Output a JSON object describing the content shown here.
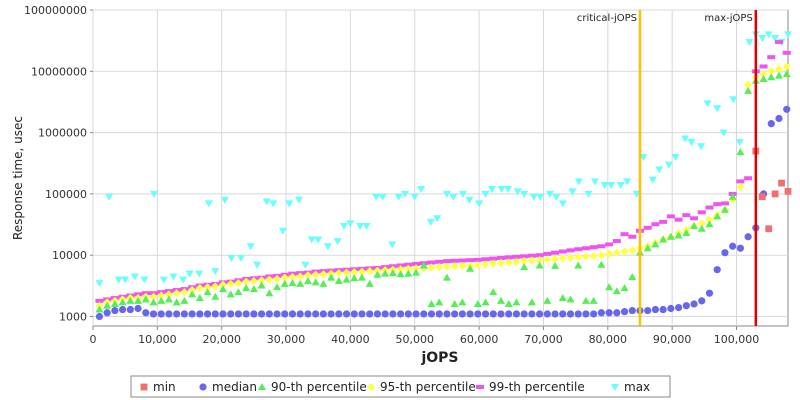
{
  "chart_data": {
    "type": "scatter",
    "xlabel": "jOPS",
    "ylabel": "Response time, usec",
    "xlim": [
      0,
      108000
    ],
    "ylim": [
      700,
      100000000
    ],
    "y_scale": "log",
    "x_ticks": [
      0,
      10000,
      20000,
      30000,
      40000,
      50000,
      60000,
      70000,
      80000,
      90000,
      100000
    ],
    "x_tick_labels": [
      "0",
      "10,000",
      "20,000",
      "30,000",
      "40,000",
      "50,000",
      "60,000",
      "70,000",
      "80,000",
      "90,000",
      "100,000"
    ],
    "y_ticks": [
      1000,
      10000,
      100000,
      1000000,
      10000000,
      100000000
    ],
    "y_tick_labels": [
      "1000",
      "10000",
      "100000",
      "1000000",
      "10000000",
      "100000000"
    ],
    "grid": true,
    "legend_position": "bottom",
    "vlines": [
      {
        "label": "critical-jOPS",
        "x": 85000,
        "color": "#ffc000"
      },
      {
        "label": "max-jOPS",
        "x": 103000,
        "color": "#dd0000"
      }
    ],
    "series": [
      {
        "name": "min",
        "marker": "square",
        "color": "#f07070",
        "x": [
          103000,
          104000,
          105000,
          106000,
          107000,
          108000
        ],
        "y": [
          500000,
          90000,
          27000,
          100000,
          150000,
          110000
        ]
      },
      {
        "name": "median",
        "marker": "circle",
        "color": "#6666ee",
        "x_start": 1000,
        "x_step": 1200,
        "y": [
          1000,
          1150,
          1250,
          1300,
          1300,
          1350,
          1150,
          1100,
          1100,
          1100,
          1100,
          1100,
          1100,
          1100,
          1100,
          1100,
          1100,
          1100,
          1100,
          1100,
          1100,
          1100,
          1100,
          1100,
          1100,
          1100,
          1100,
          1100,
          1100,
          1100,
          1100,
          1100,
          1100,
          1100,
          1100,
          1100,
          1100,
          1100,
          1100,
          1100,
          1100,
          1100,
          1100,
          1100,
          1100,
          1100,
          1100,
          1100,
          1100,
          1100,
          1100,
          1100,
          1100,
          1100,
          1100,
          1100,
          1100,
          1100,
          1100,
          1100,
          1100,
          1100,
          1100,
          1100,
          1100,
          1150,
          1150,
          1150,
          1200,
          1250,
          1250,
          1250,
          1300,
          1300,
          1350,
          1400,
          1500,
          1600,
          1800,
          2400,
          5800,
          11000,
          14000,
          13000,
          20000,
          28000,
          100000,
          1400000,
          1700000,
          2400000,
          1700000
        ]
      },
      {
        "name": "90-th percentile",
        "marker": "triangle",
        "color": "#55ee55",
        "x_start": 1000,
        "x_step": 1200,
        "y": [
          1300,
          1500,
          1600,
          1700,
          1800,
          1800,
          1900,
          1700,
          1800,
          1900,
          1700,
          1800,
          2300,
          2000,
          2500,
          2100,
          2800,
          2300,
          2500,
          2900,
          2800,
          3200,
          2400,
          3000,
          3400,
          3500,
          3400,
          3800,
          3600,
          3400,
          4300,
          3800,
          4000,
          4200,
          4300,
          3400,
          4800,
          5000,
          5100,
          4900,
          5000,
          5200,
          6800,
          1600,
          1700,
          4300,
          1600,
          1700,
          6000,
          1600,
          1700,
          2500,
          1800,
          1600,
          1700,
          6400,
          1700,
          6800,
          1800,
          6700,
          2000,
          1900,
          6800,
          1800,
          1800,
          7000,
          3000,
          2600,
          2900,
          4400,
          11000,
          13000,
          15000,
          18000,
          20000,
          21000,
          23000,
          30000,
          27000,
          32000,
          43000,
          55000,
          90000,
          480000,
          4800000,
          7000000,
          7500000,
          8000000,
          8500000,
          9000000,
          8000000
        ]
      },
      {
        "name": "95-th percentile",
        "marker": "diamond",
        "color": "#ffff44",
        "x_start": 1000,
        "x_step": 1200,
        "y": [
          1500,
          1700,
          1800,
          1900,
          2000,
          2000,
          2100,
          2100,
          2200,
          2300,
          2400,
          2500,
          2700,
          2900,
          3000,
          3100,
          3300,
          3400,
          3500,
          3700,
          3800,
          3900,
          4000,
          4100,
          4300,
          4400,
          4500,
          4700,
          4800,
          4900,
          5000,
          5100,
          5200,
          5300,
          5400,
          5500,
          5600,
          5700,
          5800,
          5900,
          6000,
          6100,
          6200,
          6300,
          6400,
          6500,
          6600,
          6700,
          6800,
          6900,
          7100,
          7300,
          7500,
          7600,
          7800,
          8000,
          8200,
          8300,
          8500,
          8700,
          8900,
          9100,
          9300,
          9500,
          9700,
          10000,
          10500,
          11000,
          11500,
          12000,
          13000,
          14000,
          16000,
          18000,
          20000,
          23000,
          26000,
          30000,
          33000,
          38000,
          45000,
          55000,
          80000,
          130000,
          6000000,
          8000000,
          9000000,
          10000000,
          11000000,
          12000000,
          10000000
        ]
      },
      {
        "name": "99-th percentile",
        "marker": "minus",
        "color": "#ee55ee",
        "x_start": 1000,
        "x_step": 1200,
        "y": [
          1800,
          1900,
          2000,
          2100,
          2200,
          2300,
          2400,
          2400,
          2500,
          2600,
          2700,
          2800,
          3000,
          3200,
          3300,
          3400,
          3600,
          3700,
          3900,
          4100,
          4200,
          4300,
          4500,
          4600,
          4800,
          5000,
          5100,
          5200,
          5400,
          5500,
          5600,
          5700,
          5800,
          5900,
          6000,
          6100,
          6200,
          6400,
          6600,
          6800,
          7000,
          7200,
          7400,
          7600,
          7800,
          8000,
          8100,
          8200,
          8300,
          8400,
          8600,
          8800,
          9000,
          9200,
          9400,
          9600,
          9800,
          10000,
          10500,
          11000,
          11500,
          12000,
          12500,
          13000,
          13500,
          14000,
          15000,
          17000,
          22000,
          20000,
          25000,
          28000,
          32000,
          35000,
          43000,
          38000,
          45000,
          40000,
          50000,
          60000,
          68000,
          70000,
          100000,
          160000,
          180000,
          10000000,
          12000000,
          17000000,
          30000000,
          20000000,
          20000000
        ]
      },
      {
        "name": "max",
        "marker": "triangle-down",
        "color": "#66ffff",
        "x": [
          1000,
          2500,
          4000,
          5000,
          6500,
          8000,
          9500,
          11000,
          12500,
          14000,
          15000,
          16500,
          18000,
          19000,
          20500,
          21500,
          23000,
          24500,
          25500,
          27000,
          28000,
          29500,
          30500,
          32000,
          33000,
          34000,
          35000,
          36500,
          38000,
          39000,
          40000,
          41500,
          42500,
          44000,
          45000,
          46500,
          47500,
          48500,
          50000,
          51000,
          52500,
          53500,
          55000,
          56000,
          57500,
          58500,
          60000,
          61000,
          62000,
          63500,
          64500,
          66000,
          67000,
          68500,
          69500,
          71000,
          72000,
          73000,
          74500,
          75500,
          77000,
          78000,
          79500,
          80500,
          82000,
          83000,
          84500,
          85500,
          87000,
          88000,
          89500,
          90500,
          92000,
          93000,
          94500,
          95500,
          97000,
          98000,
          99500,
          100500,
          102000,
          103000,
          104000,
          105000,
          106000,
          107000,
          108000
        ],
        "y": [
          3500,
          90000,
          4000,
          4000,
          4500,
          4000,
          100000,
          4000,
          4500,
          4000,
          5000,
          5000,
          70000,
          5500,
          80000,
          9000,
          9000,
          14000,
          7000,
          75000,
          70000,
          25000,
          70000,
          80000,
          7000,
          18000,
          18000,
          14000,
          17000,
          30000,
          33000,
          30000,
          30000,
          90000,
          90000,
          15000,
          90000,
          100000,
          90000,
          120000,
          35000,
          40000,
          100000,
          90000,
          100000,
          80000,
          70000,
          100000,
          120000,
          120000,
          120000,
          110000,
          100000,
          90000,
          90000,
          100000,
          90000,
          70000,
          110000,
          160000,
          100000,
          160000,
          140000,
          140000,
          140000,
          160000,
          100000,
          400000,
          170000,
          250000,
          300000,
          400000,
          800000,
          700000,
          600000,
          3000000,
          2500000,
          1000000,
          3500000,
          700000,
          30000000,
          40000000,
          35000000,
          40000000,
          35000000,
          30000000,
          40000000
        ]
      }
    ]
  }
}
